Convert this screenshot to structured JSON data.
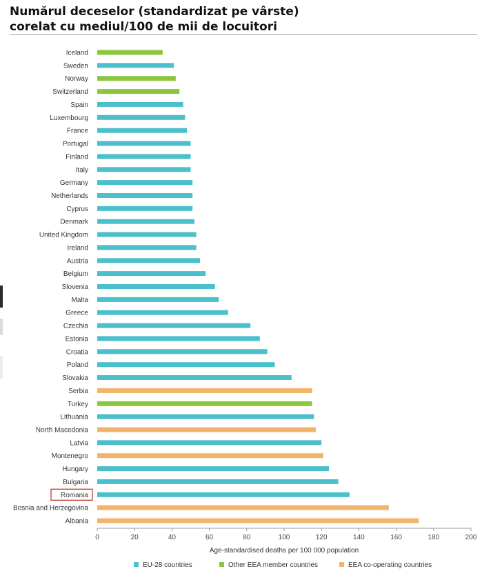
{
  "header": {
    "title_line1": "Numărul deceselor (standardizat pe vârste)",
    "title_line2": "corelat cu mediul/100 de mii de locuitori"
  },
  "colors": {
    "eu28": "#4bbfcc",
    "other_eea": "#8cc63f",
    "eea_cooperating": "#f2b46a",
    "highlight_box": "#c0392b"
  },
  "chart_data": {
    "type": "bar",
    "orientation": "horizontal",
    "xlabel": "Age-standardised deaths per 100 000 population",
    "xlim": [
      0,
      200
    ],
    "xticks": [
      0,
      20,
      40,
      60,
      80,
      100,
      120,
      140,
      160,
      180,
      200
    ],
    "highlighted_category": "Romania",
    "legend_position": "bottom",
    "legend": [
      {
        "key": "eu28",
        "label": "EU-28 countries"
      },
      {
        "key": "other_eea",
        "label": "Other EEA member countries"
      },
      {
        "key": "eea_cooperating",
        "label": "EEA co-operating countries"
      }
    ],
    "bars": [
      {
        "category": "Iceland",
        "value": 35,
        "group": "other_eea"
      },
      {
        "category": "Sweden",
        "value": 41,
        "group": "eu28"
      },
      {
        "category": "Norway",
        "value": 42,
        "group": "other_eea"
      },
      {
        "category": "Switzerland",
        "value": 44,
        "group": "other_eea"
      },
      {
        "category": "Spain",
        "value": 46,
        "group": "eu28"
      },
      {
        "category": "Luxembourg",
        "value": 47,
        "group": "eu28"
      },
      {
        "category": "France",
        "value": 48,
        "group": "eu28"
      },
      {
        "category": "Portugal",
        "value": 50,
        "group": "eu28"
      },
      {
        "category": "Finland",
        "value": 50,
        "group": "eu28"
      },
      {
        "category": "Italy",
        "value": 50,
        "group": "eu28"
      },
      {
        "category": "Germany",
        "value": 51,
        "group": "eu28"
      },
      {
        "category": "Netherlands",
        "value": 51,
        "group": "eu28"
      },
      {
        "category": "Cyprus",
        "value": 51,
        "group": "eu28"
      },
      {
        "category": "Denmark",
        "value": 52,
        "group": "eu28"
      },
      {
        "category": "United Kingdom",
        "value": 53,
        "group": "eu28"
      },
      {
        "category": "Ireland",
        "value": 53,
        "group": "eu28"
      },
      {
        "category": "Austria",
        "value": 55,
        "group": "eu28"
      },
      {
        "category": "Belgium",
        "value": 58,
        "group": "eu28"
      },
      {
        "category": "Slovenia",
        "value": 63,
        "group": "eu28"
      },
      {
        "category": "Malta",
        "value": 65,
        "group": "eu28"
      },
      {
        "category": "Greece",
        "value": 70,
        "group": "eu28"
      },
      {
        "category": "Czechia",
        "value": 82,
        "group": "eu28"
      },
      {
        "category": "Estonia",
        "value": 87,
        "group": "eu28"
      },
      {
        "category": "Croatia",
        "value": 91,
        "group": "eu28"
      },
      {
        "category": "Poland",
        "value": 95,
        "group": "eu28"
      },
      {
        "category": "Slovakia",
        "value": 104,
        "group": "eu28"
      },
      {
        "category": "Serbia",
        "value": 115,
        "group": "eea_cooperating"
      },
      {
        "category": "Turkey",
        "value": 115,
        "group": "other_eea"
      },
      {
        "category": "Lithuania",
        "value": 116,
        "group": "eu28"
      },
      {
        "category": "North Macedonia",
        "value": 117,
        "group": "eea_cooperating"
      },
      {
        "category": "Latvia",
        "value": 120,
        "group": "eu28"
      },
      {
        "category": "Montenegro",
        "value": 121,
        "group": "eea_cooperating"
      },
      {
        "category": "Hungary",
        "value": 124,
        "group": "eu28"
      },
      {
        "category": "Bulgaria",
        "value": 129,
        "group": "eu28"
      },
      {
        "category": "Romania",
        "value": 135,
        "group": "eu28"
      },
      {
        "category": "Bosnia and Herzegovina",
        "value": 156,
        "group": "eea_cooperating"
      },
      {
        "category": "Albania",
        "value": 172,
        "group": "eea_cooperating"
      }
    ]
  }
}
